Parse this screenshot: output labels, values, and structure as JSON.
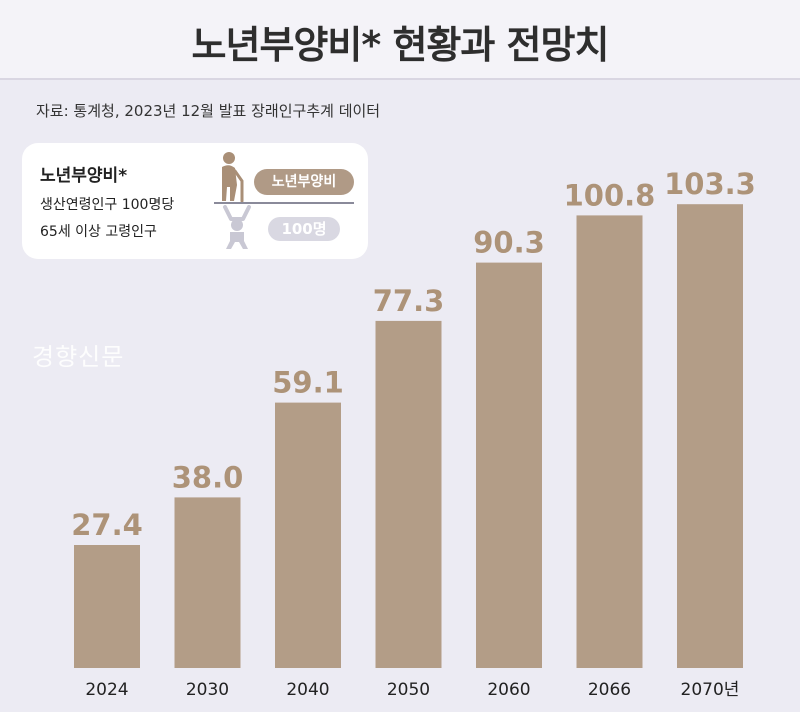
{
  "header": {
    "title": "노년부양비* 현황과 전망치"
  },
  "source": "자료: 통계청, 2023년 12월 발표 장래인구추계 데이터",
  "legend": {
    "title": "노년부양비*",
    "line1": "생산연령인구 100명당",
    "line2": "65세 이상 고령인구",
    "pill_top": "노년부양비",
    "pill_bottom": "100명"
  },
  "watermark": "경향신문",
  "colors": {
    "bar": "#b39d87",
    "value_text": "#ad9378",
    "background": "#ecebf3"
  },
  "chart_data": {
    "type": "bar",
    "categories": [
      "2024",
      "2030",
      "2040",
      "2050",
      "2060",
      "2066",
      "2070년"
    ],
    "values": [
      27.4,
      38.0,
      59.1,
      77.3,
      90.3,
      100.8,
      103.3
    ],
    "value_labels": [
      "27.4",
      "38.0",
      "59.1",
      "77.3",
      "90.3",
      "100.8",
      "103.3"
    ],
    "title": "노년부양비* 현황과 전망치",
    "xlabel": "",
    "ylabel": "",
    "ylim": [
      0,
      110
    ],
    "grid": false
  }
}
